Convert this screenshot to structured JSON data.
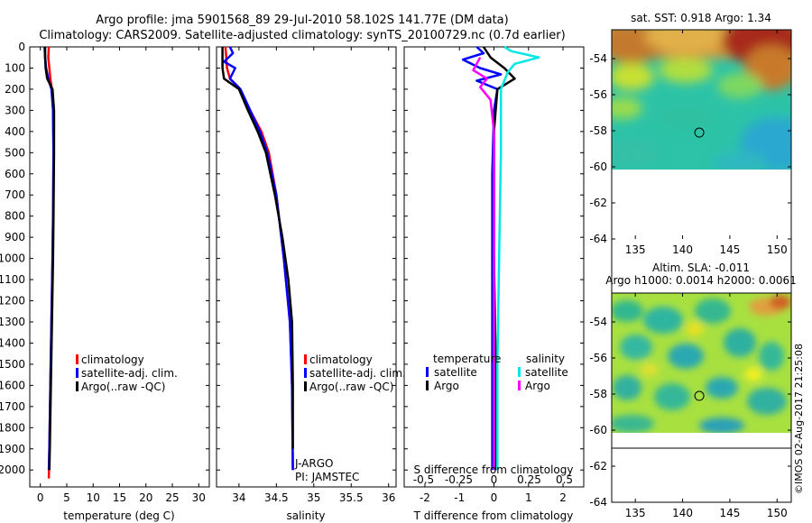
{
  "header": {
    "title_line1": "Argo profile: jma 5901568_89 29-Jul-2010 58.102S 141.77E (DM data)",
    "title_line2": "Climatology: CARS2009. Satellite-adjusted climatology: synTS_20100729.nc (0.7d earlier)"
  },
  "credit": "©IMOS 02-Aug-2017 21:25:08",
  "colors": {
    "climatology": "#ff0000",
    "satellite": "#0000ff",
    "argo": "#000000",
    "sat_salinity": "#00e5e5",
    "argo_salinity": "#ff00ff"
  },
  "chart_data": [
    {
      "type": "line",
      "name": "temperature-panel",
      "xlabel": "temperature (deg C)",
      "ylabel": "",
      "xlim": [
        -2,
        32
      ],
      "ylim": [
        2080,
        0
      ],
      "xticks": [
        0,
        5,
        10,
        15,
        20,
        25,
        30
      ],
      "yticks": [
        0,
        100,
        200,
        300,
        400,
        500,
        600,
        700,
        800,
        900,
        1000,
        1100,
        1200,
        1300,
        1400,
        1500,
        1600,
        1700,
        1800,
        1900,
        2000
      ],
      "legend": [
        "climatology",
        "satellite-adj. clim.",
        "Argo(..raw -QC)"
      ],
      "series": [
        {
          "name": "climatology",
          "color": "#ff0000",
          "points": [
            [
              1.6,
              0
            ],
            [
              1.5,
              50
            ],
            [
              1.7,
              100
            ],
            [
              1.9,
              150
            ],
            [
              2.2,
              200
            ],
            [
              2.4,
              300
            ],
            [
              2.5,
              500
            ],
            [
              2.4,
              800
            ],
            [
              2.3,
              1000
            ],
            [
              2.1,
              1300
            ],
            [
              1.9,
              1600
            ],
            [
              1.7,
              1900
            ],
            [
              1.6,
              2040
            ]
          ]
        },
        {
          "name": "satellite-adj. clim.",
          "color": "#0000ff",
          "points": [
            [
              0.8,
              0
            ],
            [
              0.9,
              50
            ],
            [
              1.1,
              100
            ],
            [
              1.5,
              150
            ],
            [
              2.1,
              200
            ],
            [
              2.4,
              300
            ],
            [
              2.5,
              500
            ],
            [
              2.4,
              800
            ],
            [
              2.3,
              1000
            ],
            [
              2.1,
              1300
            ],
            [
              1.9,
              1600
            ],
            [
              1.7,
              1900
            ],
            [
              1.6,
              2000
            ]
          ]
        },
        {
          "name": "Argo(..raw -QC)",
          "color": "#000000",
          "points": [
            [
              0.9,
              0
            ],
            [
              0.9,
              50
            ],
            [
              1.0,
              100
            ],
            [
              1.3,
              150
            ],
            [
              2.3,
              200
            ],
            [
              2.6,
              300
            ],
            [
              2.6,
              500
            ],
            [
              2.5,
              800
            ],
            [
              2.4,
              1000
            ],
            [
              2.2,
              1300
            ],
            [
              2.0,
              1600
            ],
            [
              1.8,
              1900
            ],
            [
              1.7,
              2000
            ]
          ]
        }
      ]
    },
    {
      "type": "line",
      "name": "salinity-panel",
      "xlabel": "salinity",
      "ylabel": "",
      "xlim": [
        33.7,
        36.1
      ],
      "ylim": [
        2080,
        0
      ],
      "xticks": [
        34,
        34.5,
        35,
        35.5,
        36
      ],
      "legend": [
        "climatology",
        "satellite-adj. clim.",
        "Argo(..raw -QC)"
      ],
      "annotations": [
        "J-ARGO",
        "PI: JAMSTEC"
      ],
      "series": [
        {
          "name": "climatology",
          "color": "#ff0000",
          "points": [
            [
              33.82,
              0
            ],
            [
              33.84,
              100
            ],
            [
              33.88,
              150
            ],
            [
              34.02,
              200
            ],
            [
              34.15,
              300
            ],
            [
              34.3,
              400
            ],
            [
              34.4,
              500
            ],
            [
              34.5,
              700
            ],
            [
              34.6,
              1000
            ],
            [
              34.68,
              1300
            ],
            [
              34.71,
              1600
            ],
            [
              34.72,
              2000
            ]
          ]
        },
        {
          "name": "satellite-adj. clim.",
          "color": "#0000ff",
          "points": [
            [
              33.88,
              0
            ],
            [
              33.92,
              30
            ],
            [
              33.8,
              70
            ],
            [
              33.95,
              100
            ],
            [
              33.88,
              150
            ],
            [
              34.02,
              200
            ],
            [
              34.15,
              300
            ],
            [
              34.28,
              400
            ],
            [
              34.38,
              500
            ],
            [
              34.5,
              700
            ],
            [
              34.6,
              1000
            ],
            [
              34.68,
              1300
            ],
            [
              34.71,
              1600
            ],
            [
              34.72,
              2000
            ]
          ]
        },
        {
          "name": "Argo(..raw -QC)",
          "color": "#000000",
          "points": [
            [
              33.78,
              0
            ],
            [
              33.78,
              100
            ],
            [
              33.8,
              150
            ],
            [
              34.0,
              200
            ],
            [
              34.12,
              300
            ],
            [
              34.25,
              400
            ],
            [
              34.36,
              500
            ],
            [
              34.48,
              700
            ],
            [
              34.58,
              900
            ],
            [
              34.66,
              1100
            ],
            [
              34.71,
              1300
            ],
            [
              34.72,
              1600
            ],
            [
              34.72,
              1900
            ]
          ]
        }
      ]
    },
    {
      "type": "line",
      "name": "difference-panel",
      "xlabel": "T difference from climatology",
      "x2label": "S difference from climatology",
      "xlim": [
        -2.6,
        2.6
      ],
      "ylim": [
        2080,
        0
      ],
      "xticks": [
        -2,
        -1,
        0,
        1,
        2
      ],
      "x2ticks": [
        "-0.5",
        "-0.25",
        "0",
        "0.25",
        "0.5"
      ],
      "legend_headers": [
        "temperature",
        "salinity"
      ],
      "legend": [
        "satellite",
        "Argo",
        "satellite",
        "Argo"
      ],
      "series": [
        {
          "name": "temperature satellite",
          "color": "#0000ff",
          "points": [
            [
              -0.5,
              0
            ],
            [
              -0.3,
              30
            ],
            [
              -0.9,
              60
            ],
            [
              -0.4,
              100
            ],
            [
              0.2,
              130
            ],
            [
              -0.5,
              160
            ],
            [
              0.1,
              200
            ],
            [
              0.0,
              300
            ],
            [
              -0.05,
              600
            ],
            [
              -0.05,
              1000
            ],
            [
              -0.05,
              1500
            ],
            [
              -0.05,
              2000
            ]
          ]
        },
        {
          "name": "temperature Argo",
          "color": "#000000",
          "points": [
            [
              -0.3,
              0
            ],
            [
              -0.1,
              50
            ],
            [
              0.3,
              100
            ],
            [
              0.6,
              150
            ],
            [
              0.1,
              200
            ],
            [
              0.0,
              400
            ],
            [
              0.0,
              1000
            ],
            [
              0.05,
              1500
            ],
            [
              0.05,
              2000
            ]
          ]
        },
        {
          "name": "salinity satellite",
          "color": "#00e5e5",
          "points": [
            [
              0.3,
              0
            ],
            [
              0.5,
              20
            ],
            [
              1.3,
              50
            ],
            [
              0.6,
              80
            ],
            [
              0.4,
              120
            ],
            [
              0.2,
              200
            ],
            [
              0.2,
              500
            ],
            [
              0.15,
              1000
            ],
            [
              0.1,
              1500
            ],
            [
              0.1,
              2000
            ]
          ]
        },
        {
          "name": "salinity Argo",
          "color": "#ff00ff",
          "points": [
            [
              -0.4,
              50
            ],
            [
              -0.6,
              110
            ],
            [
              -0.2,
              150
            ],
            [
              -0.4,
              190
            ],
            [
              -0.1,
              250
            ],
            [
              0.0,
              400
            ],
            [
              0.0,
              1000
            ],
            [
              0.0,
              2000
            ]
          ]
        }
      ]
    },
    {
      "type": "heatmap",
      "name": "sst-map",
      "title": "sat. SST: 0.918 Argo: 1.34",
      "xticks": [
        135,
        140,
        145,
        150
      ],
      "yticks": [
        -54,
        -56,
        -58,
        -60,
        -62,
        -64
      ],
      "xlim": [
        132.5,
        151.5
      ],
      "ylim": [
        -64,
        -52.4
      ],
      "marker": {
        "lon": 141.77,
        "lat": -58.102
      }
    },
    {
      "type": "heatmap",
      "name": "sla-map",
      "title_line1": "Altim. SLA: -0.011",
      "title_line2": "Argo h1000: 0.0014 h2000: 0.0061",
      "xticks": [
        135,
        140,
        145,
        150
      ],
      "yticks": [
        -54,
        -56,
        -58,
        -60,
        -62,
        -64
      ],
      "xlim": [
        132.5,
        151.5
      ],
      "ylim": [
        -64,
        -52.4
      ],
      "marker": {
        "lon": 141.77,
        "lat": -58.102
      }
    }
  ]
}
